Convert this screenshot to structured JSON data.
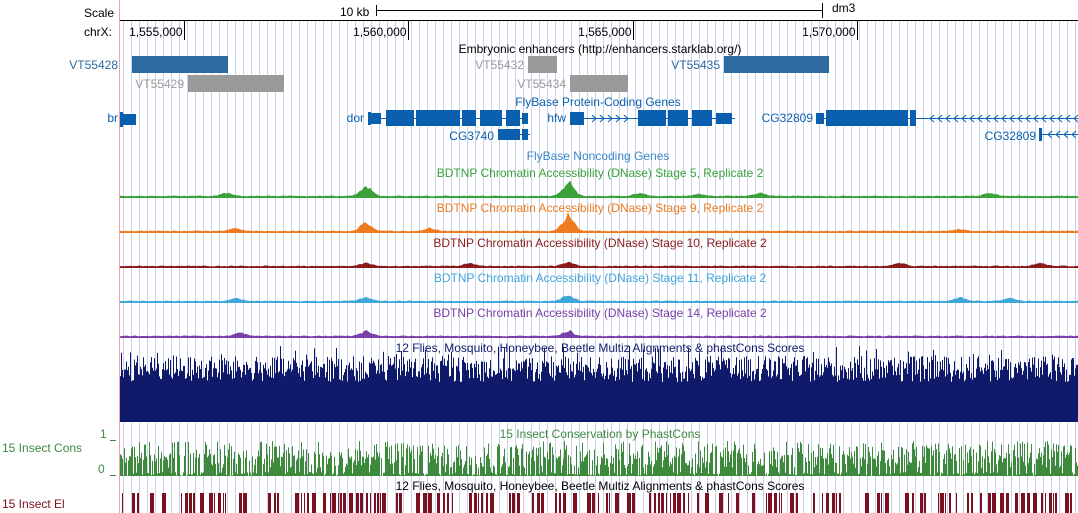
{
  "header": {
    "scale_label": "Scale",
    "scale_bar_label": "10 kb",
    "assembly": "dm3",
    "chrom_label": "chrX:",
    "ruler": [
      {
        "label": "1,555,000",
        "pos": 1555000
      },
      {
        "label": "1,560,000",
        "pos": 1560000
      },
      {
        "label": "1,565,000",
        "pos": 1565000
      },
      {
        "label": "1,570,000",
        "pos": 1570000
      }
    ]
  },
  "colors": {
    "enhancer_dark": "#2d6aa0",
    "enhancer_gray": "#9a9a9a",
    "gene_blue": "#0a5fae",
    "stage5": "#3aa13a",
    "stage9": "#f07b1e",
    "stage10": "#8b1a1a",
    "stage11": "#3fa6d8",
    "stage14": "#7b3fa8",
    "multiz": "#101a6a",
    "phastcons": "#3d8a3d",
    "elements": "#7a1020",
    "grid_line": "#c8d2ee",
    "guide_red": "#f4a0a0"
  },
  "tracks": {
    "enhancers": {
      "title": "Embryonic enhancers (http://enhancers.starklab.org/)",
      "items": [
        {
          "name": "VT55428",
          "style": "dark"
        },
        {
          "name": "VT55429",
          "style": "gray"
        },
        {
          "name": "VT55432",
          "style": "gray"
        },
        {
          "name": "VT55434",
          "style": "gray"
        },
        {
          "name": "VT55435",
          "style": "dark"
        }
      ]
    },
    "coding_genes": {
      "title": "FlyBase Protein-Coding Genes",
      "items": [
        {
          "name": "br"
        },
        {
          "name": "dor"
        },
        {
          "name": "CG3740"
        },
        {
          "name": "hfw"
        },
        {
          "name": "CG32809"
        },
        {
          "name": "CG32809"
        }
      ]
    },
    "noncoding_genes": {
      "title": "FlyBase Noncoding Genes"
    },
    "dnase": [
      {
        "title": "BDTNP Chromatin Accessibility (DNase) Stage 5, Replicate 2",
        "color": "#3aa13a"
      },
      {
        "title": "BDTNP Chromatin Accessibility (DNase) Stage 9, Replicate 2",
        "color": "#f07b1e"
      },
      {
        "title": "BDTNP Chromatin Accessibility (DNase) Stage 10, Replicate 2",
        "color": "#8b1a1a"
      },
      {
        "title": "BDTNP Chromatin Accessibility (DNase) Stage 11, Replicate 2",
        "color": "#3fa6d8"
      },
      {
        "title": "BDTNP Chromatin Accessibility (DNase) Stage 14, Replicate 2",
        "color": "#7b3fa8"
      }
    ],
    "multiz": {
      "title": "12 Flies, Mosquito, Honeybee, Beetle Multiz Alignments & phastCons Scores"
    },
    "phastcons": {
      "title": "15 Insect Conservation by PhastCons",
      "side_label": "15 Insect Cons",
      "axis_top": "1",
      "axis_bottom": "0"
    },
    "elements": {
      "title": "12 Flies, Mosquito, Honeybee, Beetle Multiz Alignments & phastCons Scores",
      "side_label": "15 Insect El"
    }
  }
}
